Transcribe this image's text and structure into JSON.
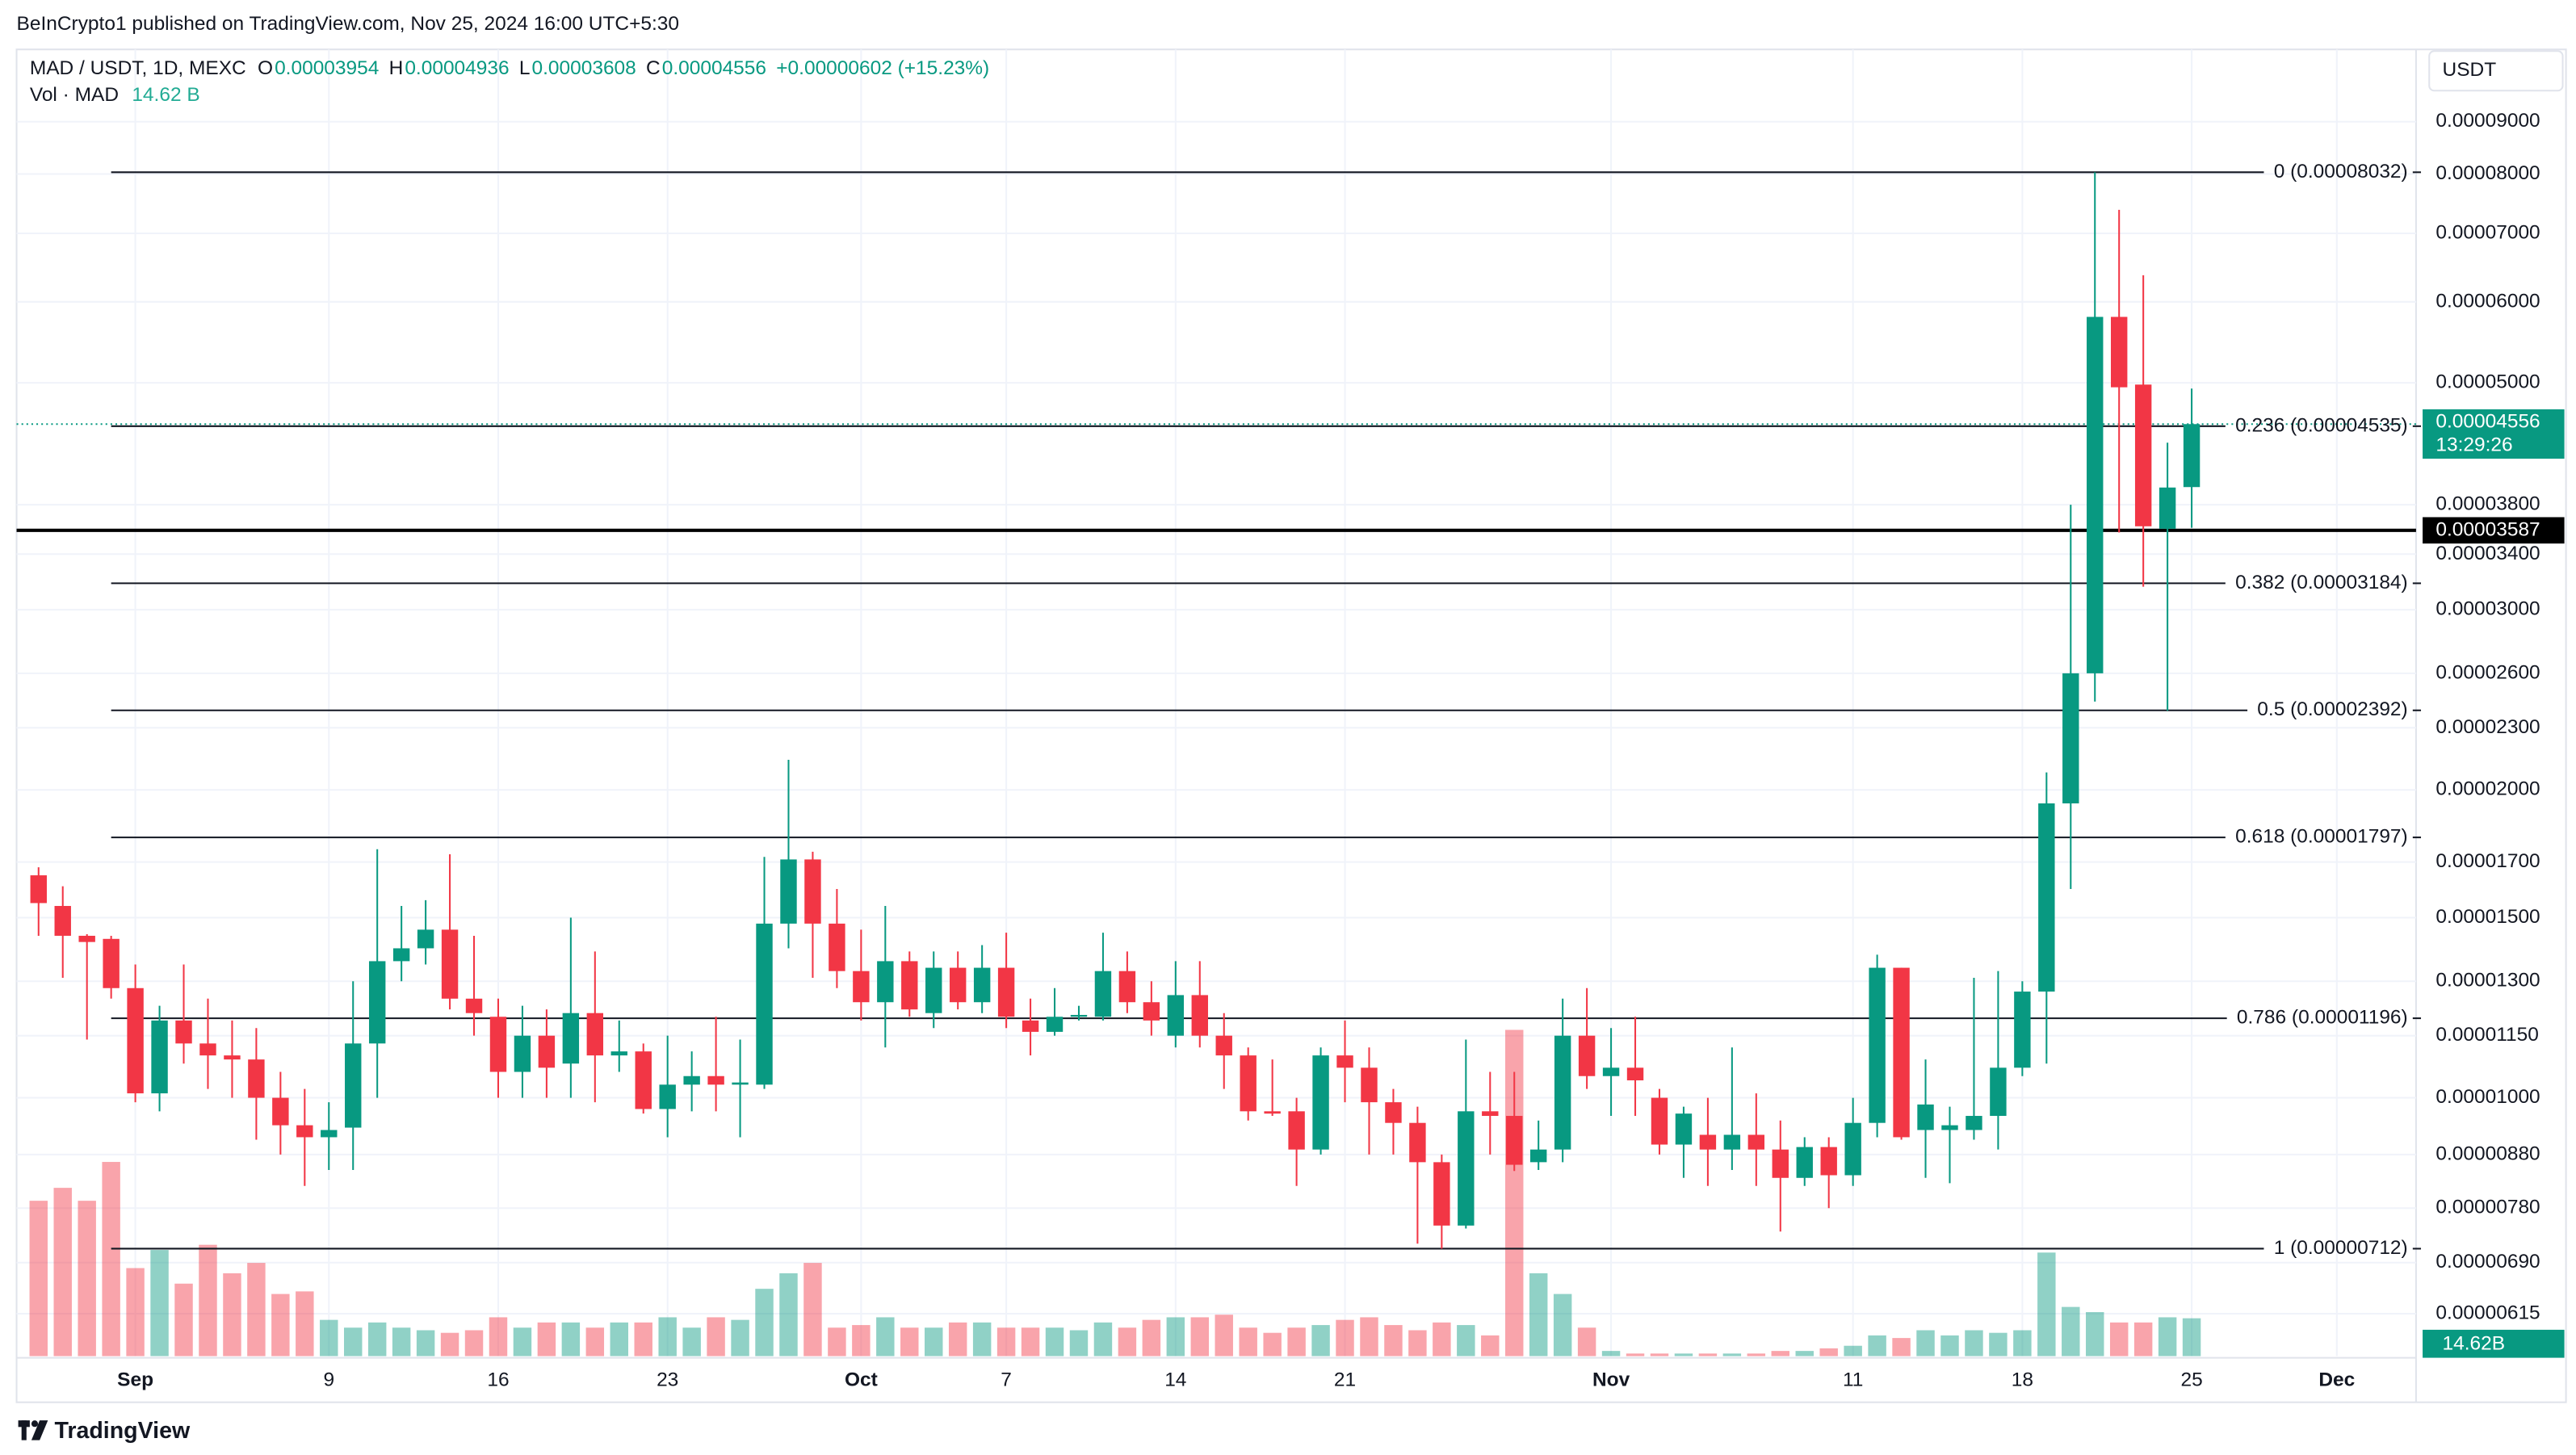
{
  "header": {
    "publisher": "BeInCrypto1 published on TradingView.com, Nov 25, 2024 16:00 UTC+5:30",
    "brand": "TradingView"
  },
  "legend": {
    "symbol": "MAD / USDT, 1D, MEXC",
    "o": "O",
    "h": "H",
    "l": "L",
    "c": "C",
    "change": "+0.00000602 (+15.23%)",
    "volume_title": "Vol · MAD",
    "volume_value": "14.62 B"
  },
  "currency": "USDT",
  "countdown": "13:29:26",
  "chart_data": {
    "type": "candlestick",
    "log_scale": true,
    "grid": true,
    "up_color": "#089981",
    "down_color": "#f23645",
    "categories": [
      null,
      null,
      null,
      null,
      "Sep",
      null,
      null,
      null,
      null,
      null,
      null,
      null,
      "9",
      null,
      null,
      null,
      null,
      null,
      null,
      "16",
      null,
      null,
      null,
      null,
      null,
      null,
      "23",
      null,
      null,
      null,
      null,
      null,
      null,
      null,
      "Oct",
      null,
      null,
      null,
      null,
      null,
      "7",
      null,
      null,
      null,
      null,
      null,
      null,
      "14",
      null,
      null,
      null,
      null,
      null,
      null,
      "21",
      null,
      null,
      null,
      null,
      null,
      null,
      null,
      null,
      null,
      null,
      "Nov",
      null,
      null,
      null,
      null,
      null,
      null,
      null,
      null,
      null,
      "11",
      null,
      null,
      null,
      null,
      null,
      null,
      "18",
      null,
      null,
      null,
      null,
      null,
      null,
      "25",
      null,
      null,
      null,
      null,
      null,
      "Dec",
      null,
      null,
      null
    ],
    "open": [
      1.65e-05,
      1.54e-05,
      1.44e-05,
      1.43e-05,
      1.28e-05,
      1.01e-05,
      1.19e-05,
      1.13e-05,
      1.1e-05,
      1.09e-05,
      1e-05,
      9.4e-06,
      9.15e-06,
      9.35e-06,
      1.13e-05,
      1.36e-05,
      1.4e-05,
      1.46e-05,
      1.25e-05,
      1.2e-05,
      1.06e-05,
      1.15e-05,
      1.08e-05,
      1.21e-05,
      1.1e-05,
      1.11e-05,
      9.75e-06,
      1.03e-05,
      1.05e-05,
      1.03e-05,
      1.03e-05,
      1.48e-05,
      1.71e-05,
      1.48e-05,
      1.33e-05,
      1.24e-05,
      1.36e-05,
      1.21e-05,
      1.34e-05,
      1.24e-05,
      1.34e-05,
      1.19e-05,
      1.16e-05,
      1.2e-05,
      1.2e-05,
      1.33e-05,
      1.24e-05,
      1.15e-05,
      1.26e-05,
      1.15e-05,
      1.1e-05,
      9.7e-06,
      9.7e-06,
      8.9e-06,
      1.1e-05,
      1.07e-05,
      9.9e-06,
      9.45e-06,
      8.65e-06,
      7.5e-06,
      9.7e-06,
      9.6e-06,
      8.65e-06,
      8.9e-06,
      1.15e-05,
      1.05e-05,
      1.07e-05,
      1e-05,
      9e-06,
      9.2e-06,
      8.9e-06,
      9.2e-06,
      8.9e-06,
      8.35e-06,
      8.95e-06,
      8.4e-06,
      9.45e-06,
      1.34e-05,
      9.3e-06,
      9.3e-06,
      9.3e-06,
      9.6e-06,
      1.07e-05,
      1.27e-05,
      1.94e-05,
      2.6e-05,
      5.8e-05,
      4.98e-05,
      3.6e-05,
      3.954e-05,
      null,
      null,
      null,
      null,
      null,
      null,
      null,
      null,
      null
    ],
    "high": [
      1.68e-05,
      1.61e-05,
      1.445e-05,
      1.44e-05,
      1.35e-05,
      1.23e-05,
      1.35e-05,
      1.25e-05,
      1.19e-05,
      1.17e-05,
      1.06e-05,
      1.02e-05,
      9.9e-06,
      1.3e-05,
      1.75e-05,
      1.54e-05,
      1.56e-05,
      1.73e-05,
      1.44e-05,
      1.25e-05,
      1.23e-05,
      1.22e-05,
      1.5e-05,
      1.39e-05,
      1.19e-05,
      1.13e-05,
      1.15e-05,
      1.11e-05,
      1.2e-05,
      1.14e-05,
      1.72e-05,
      2.14e-05,
      1.74e-05,
      1.6e-05,
      1.46e-05,
      1.54e-05,
      1.39e-05,
      1.39e-05,
      1.39e-05,
      1.41e-05,
      1.45e-05,
      1.25e-05,
      1.28e-05,
      1.23e-05,
      1.45e-05,
      1.39e-05,
      1.3e-05,
      1.36e-05,
      1.36e-05,
      1.21e-05,
      1.12e-05,
      1.09e-05,
      1e-05,
      1.12e-05,
      1.19e-05,
      1.12e-05,
      1.02e-05,
      9.8e-06,
      8.8e-06,
      1.14e-05,
      1.06e-05,
      1.06e-05,
      9.5e-06,
      1.25e-05,
      1.28e-05,
      1.17e-05,
      1.2e-05,
      1.02e-05,
      9.8e-06,
      1e-05,
      1.12e-05,
      1.01e-05,
      9.5e-06,
      9.15e-06,
      9.15e-06,
      1e-05,
      1.38e-05,
      1.34e-05,
      1.09e-05,
      9.8e-06,
      1.31e-05,
      1.33e-05,
      1.3e-05,
      2.08e-05,
      3.8e-05,
      8.032e-05,
      7.38e-05,
      6.37e-05,
      4.37e-05,
      4.936e-05,
      null,
      null,
      null,
      null,
      null,
      null,
      null,
      null,
      null
    ],
    "low": [
      1.44e-05,
      1.31e-05,
      1.14e-05,
      1.25e-05,
      9.9e-06,
      9.7e-06,
      1.08e-05,
      1.02e-05,
      1e-05,
      9.1e-06,
      8.8e-06,
      8.2e-06,
      8.5e-06,
      8.5e-06,
      1e-05,
      1.3e-05,
      1.35e-05,
      1.22e-05,
      1.15e-05,
      1e-05,
      1e-05,
      1e-05,
      1e-05,
      9.9e-06,
      1.06e-05,
      9.65e-06,
      9.15e-06,
      9.7e-06,
      9.7e-06,
      9.15e-06,
      1.02e-05,
      1.4e-05,
      1.31e-05,
      1.28e-05,
      1.19e-05,
      1.12e-05,
      1.2e-05,
      1.17e-05,
      1.22e-05,
      1.21e-05,
      1.17e-05,
      1.1e-05,
      1.15e-05,
      1.19e-05,
      1.19e-05,
      1.21e-05,
      1.15e-05,
      1.12e-05,
      1.12e-05,
      1.02e-05,
      9.5e-06,
      9.6e-06,
      8.2e-06,
      8.8e-06,
      9.9e-06,
      8.8e-06,
      8.8e-06,
      7.2e-06,
      7.12e-06,
      7.45e-06,
      8.8e-06,
      8.48e-06,
      8.5e-06,
      8.65e-06,
      1.02e-05,
      9.6e-06,
      9.6e-06,
      8.8e-06,
      8.35e-06,
      8.2e-06,
      8.5e-06,
      8.2e-06,
      7.4e-06,
      8.2e-06,
      7.8e-06,
      8.2e-06,
      9.15e-06,
      9.1e-06,
      8.35e-06,
      8.25e-06,
      9.1e-06,
      8.9e-06,
      1.05e-05,
      1.08e-05,
      1.6e-05,
      2.44e-05,
      3.57e-05,
      3.16e-05,
      2.39e-05,
      3.608e-05,
      null,
      null,
      null,
      null,
      null,
      null,
      null,
      null,
      null
    ],
    "close": [
      1.55e-05,
      1.44e-05,
      1.42e-05,
      1.28e-05,
      1.01e-05,
      1.19e-05,
      1.13e-05,
      1.1e-05,
      1.09e-05,
      1e-05,
      9.4e-06,
      9.15e-06,
      9.3e-06,
      1.13e-05,
      1.36e-05,
      1.4e-05,
      1.46e-05,
      1.25e-05,
      1.21e-05,
      1.06e-05,
      1.15e-05,
      1.07e-05,
      1.21e-05,
      1.1e-05,
      1.11e-05,
      9.75e-06,
      1.03e-05,
      1.05e-05,
      1.03e-05,
      1.035e-05,
      1.48e-05,
      1.71e-05,
      1.48e-05,
      1.33e-05,
      1.24e-05,
      1.36e-05,
      1.22e-05,
      1.34e-05,
      1.24e-05,
      1.34e-05,
      1.2e-05,
      1.16e-05,
      1.2e-05,
      1.205e-05,
      1.33e-05,
      1.24e-05,
      1.19e-05,
      1.26e-05,
      1.15e-05,
      1.1e-05,
      9.7e-06,
      9.65e-06,
      8.9e-06,
      1.1e-05,
      1.07e-05,
      9.9e-06,
      9.45e-06,
      8.65e-06,
      7.5e-06,
      9.7e-06,
      9.6e-06,
      8.6e-06,
      8.9e-06,
      1.15e-05,
      1.05e-05,
      1.07e-05,
      1.04e-05,
      9e-06,
      9.65e-06,
      8.9e-06,
      9.2e-06,
      8.9e-06,
      8.35e-06,
      8.95e-06,
      8.4e-06,
      9.45e-06,
      1.34e-05,
      9.15e-06,
      9.85e-06,
      9.4e-06,
      9.6e-06,
      1.07e-05,
      1.27e-05,
      1.94e-05,
      2.6e-05,
      5.8e-05,
      4.95e-05,
      3.62e-05,
      3.95e-05,
      4.556e-05,
      null,
      null,
      null,
      null,
      null,
      null,
      null,
      null,
      null
    ],
    "ylim": [
      5.59e-06,
      0.0001059
    ],
    "yticks": [
      {
        "value": 9e-05,
        "label": "0.00009000"
      },
      {
        "value": 8e-05,
        "label": "0.00008000"
      },
      {
        "value": 7e-05,
        "label": "0.00007000"
      },
      {
        "value": 6e-05,
        "label": "0.00006000"
      },
      {
        "value": 5e-05,
        "label": "0.00005000"
      },
      {
        "value": 3.8e-05,
        "label": "0.00003800"
      },
      {
        "value": 3.4e-05,
        "label": "0.00003400"
      },
      {
        "value": 3e-05,
        "label": "0.00003000"
      },
      {
        "value": 2.6e-05,
        "label": "0.00002600"
      },
      {
        "value": 2.3e-05,
        "label": "0.00002300"
      },
      {
        "value": 2e-05,
        "label": "0.00002000"
      },
      {
        "value": 1.7e-05,
        "label": "0.00001700"
      },
      {
        "value": 1.5e-05,
        "label": "0.00001500"
      },
      {
        "value": 1.3e-05,
        "label": "0.00001300"
      },
      {
        "value": 1.15e-05,
        "label": "0.00001150"
      },
      {
        "value": 1e-05,
        "label": "0.00001000"
      },
      {
        "value": 8.8e-06,
        "label": "0.00000880"
      },
      {
        "value": 7.8e-06,
        "label": "0.00000780"
      },
      {
        "value": 6.9e-06,
        "label": "0.00000690"
      },
      {
        "value": 6.15e-06,
        "label": "0.00000615"
      }
    ],
    "fib_levels": [
      {
        "value": 8.032e-05,
        "label": "0 (0.00008032)"
      },
      {
        "value": 4.535e-05,
        "label": "0.236 (0.00004535)"
      },
      {
        "value": 3.184e-05,
        "label": "0.382 (0.00003184)"
      },
      {
        "value": 2.392e-05,
        "label": "0.5 (0.00002392)"
      },
      {
        "value": 1.797e-05,
        "label": "0.618 (0.00001797)"
      },
      {
        "value": 1.196e-05,
        "label": "0.786 (0.00001196)"
      },
      {
        "value": 7.12e-06,
        "label": "1 (0.00000712)"
      }
    ],
    "fib_color": "#131722",
    "hline": {
      "value": 3.587e-05,
      "color": "#000000"
    },
    "volume": {
      "values": [
        60,
        65,
        60,
        75,
        34,
        41,
        28,
        43,
        32,
        36,
        24,
        25,
        14,
        11,
        13,
        11,
        10,
        9,
        10,
        15,
        11,
        13,
        13,
        11,
        13,
        13,
        15,
        11,
        15,
        14,
        26,
        32,
        36,
        11,
        12,
        15,
        11,
        11,
        13,
        13,
        11,
        11,
        11,
        10,
        13,
        11,
        14,
        15,
        15,
        16,
        11,
        9,
        11,
        12,
        14,
        15,
        12,
        10,
        13,
        12,
        8,
        126,
        32,
        24,
        11,
        2,
        1,
        1,
        1,
        1,
        1,
        1,
        2,
        2,
        3,
        4,
        8,
        7,
        10,
        8,
        10,
        9,
        10,
        40,
        19,
        17,
        13,
        13,
        15,
        14.62,
        null,
        null,
        null,
        null,
        null,
        null,
        null,
        null,
        null
      ],
      "axis_label": "14.62B",
      "up_color": "rgba(8,153,129,0.45)",
      "down_color": "rgba(242,54,69,0.45)"
    }
  }
}
